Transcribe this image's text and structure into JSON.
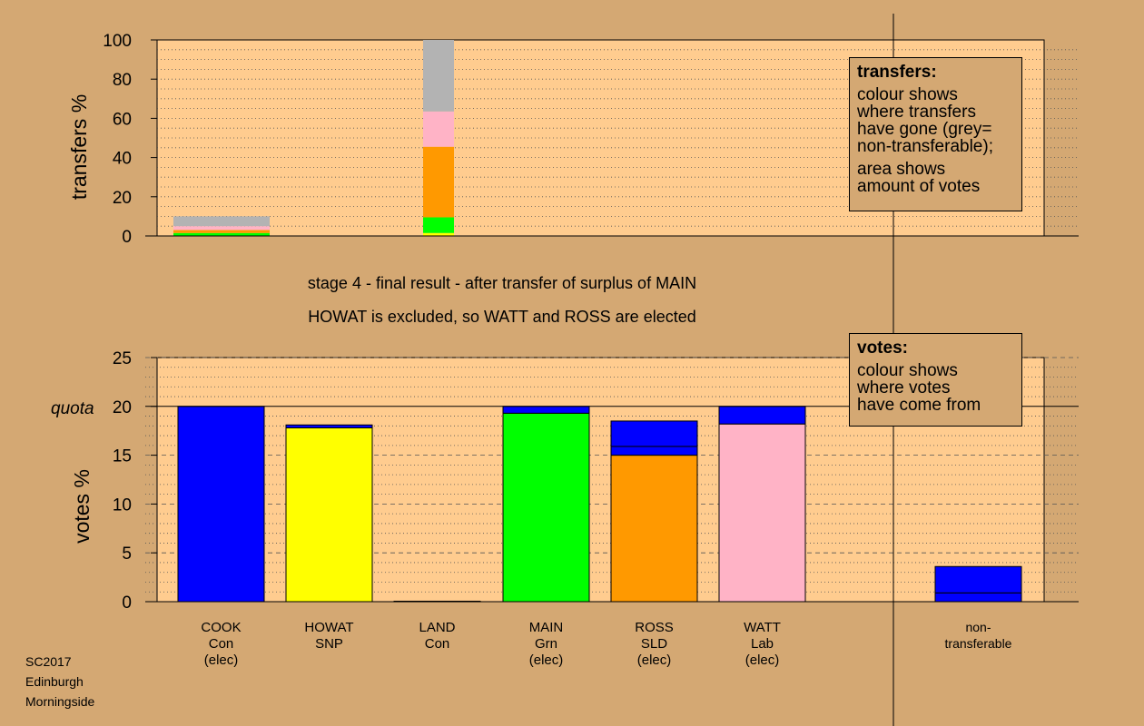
{
  "colors": {
    "background": "#d4a873",
    "plot_bg": "#ffcc8f",
    "Con": "#0000ff",
    "SNP": "#ffff00",
    "Grn": "#00ff00",
    "SLD": "#ff9900",
    "Lab": "#ffb3c6",
    "nontransferable": "#b3b3b3"
  },
  "footer": {
    "line1": "SC2017",
    "line2": "Edinburgh",
    "line3": "Morningside"
  },
  "transfer_box": {
    "title": "transfers:",
    "line1": "colour shows",
    "line2": "where transfers",
    "line3": "have gone (grey=",
    "line4": "non-transferable);",
    "line5": "area shows",
    "line6": "amount of votes"
  },
  "votes_box": {
    "title": "votes:",
    "line1": "colour shows",
    "line2": "where votes",
    "line3": "have come from"
  },
  "chart_data": [
    {
      "type": "bar",
      "stacked": true,
      "ylabel": "transfers %",
      "ylim": [
        0,
        100
      ],
      "yticks": [
        "0",
        "20",
        "40",
        "60",
        "80",
        "100"
      ],
      "grid": "dotted",
      "bars": [
        {
          "category": "COOK",
          "segments": [
            {
              "party": "Grn",
              "value": 1.5
            },
            {
              "party": "SLD",
              "value": 1.5
            },
            {
              "party": "Lab",
              "value": 2
            },
            {
              "party": "nontransferable",
              "value": 5
            }
          ]
        },
        {
          "category": "MAIN",
          "segments": [
            {
              "party": "SNP",
              "value": 1.5
            },
            {
              "party": "Grn",
              "value": 8
            },
            {
              "party": "SLD",
              "value": 36
            },
            {
              "party": "Lab",
              "value": 18
            },
            {
              "party": "nontransferable",
              "value": 36.5
            }
          ]
        }
      ]
    },
    {
      "type": "bar",
      "stacked": true,
      "title": "stage 4 - final result - after transfer of surplus of MAIN",
      "subtitle": "HOWAT is excluded, so WATT and ROSS are elected",
      "ylabel": "votes %",
      "ylim": [
        0,
        25
      ],
      "yticks": [
        "0",
        "5",
        "10",
        "15",
        "20",
        "25"
      ],
      "quota": {
        "label": "quota",
        "value": 20
      },
      "candidates": [
        {
          "name": "COOK",
          "party": "Con",
          "status": "(elec)",
          "segments": [
            {
              "party": "Con",
              "value": 20
            }
          ]
        },
        {
          "name": "HOWAT",
          "party": "SNP",
          "status": "",
          "segments": [
            {
              "party": "SNP",
              "value": 17.8
            },
            {
              "party": "Con",
              "value": 0.3
            }
          ]
        },
        {
          "name": "LAND",
          "party": "Con",
          "status": "",
          "segments": [
            {
              "party": "Con",
              "value": 0.05
            }
          ]
        },
        {
          "name": "MAIN",
          "party": "Grn",
          "status": "(elec)",
          "segments": [
            {
              "party": "Grn",
              "value": 19.3
            },
            {
              "party": "Con",
              "value": 0.7
            }
          ]
        },
        {
          "name": "ROSS",
          "party": "SLD",
          "status": "(elec)",
          "segments": [
            {
              "party": "SLD",
              "value": 15.0
            },
            {
              "party": "Con",
              "value": 0.9
            },
            {
              "party": "Con",
              "value": 2.6
            }
          ]
        },
        {
          "name": "WATT",
          "party": "Lab",
          "status": "(elec)",
          "segments": [
            {
              "party": "Lab",
              "value": 18.2
            },
            {
              "party": "Con",
              "value": 1.8
            }
          ]
        },
        {
          "name": "non-",
          "party": "transferable",
          "status": "",
          "segments": [
            {
              "party": "Con",
              "value": 0.9
            },
            {
              "party": "Con",
              "value": 2.7
            }
          ]
        }
      ]
    }
  ]
}
